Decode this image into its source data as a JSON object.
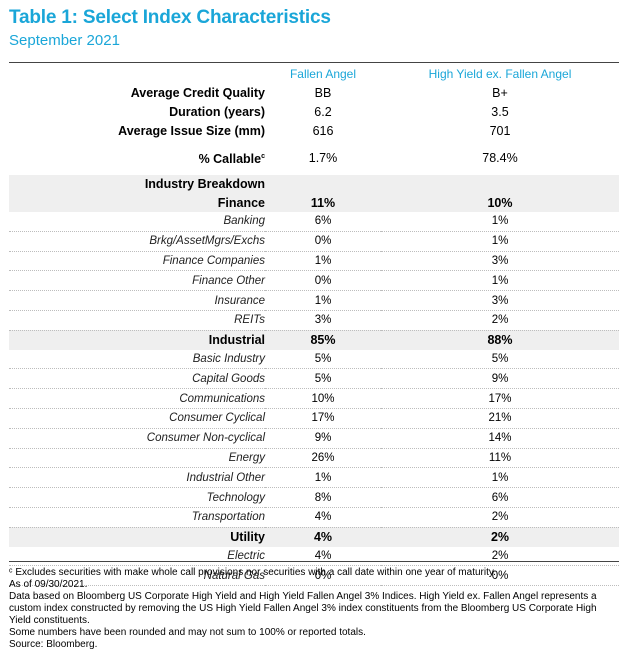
{
  "title": "Table 1: Select Index Characteristics",
  "subtitle": "September 2021",
  "columns": [
    "Fallen Angel",
    "High Yield ex. Fallen Angel"
  ],
  "summary": [
    {
      "label": "Average Credit Quality",
      "fa": "BB",
      "hy": "B+"
    },
    {
      "label": "Duration (years)",
      "fa": "6.2",
      "hy": "3.5"
    },
    {
      "label": "Average Issue Size (mm)",
      "fa": "616",
      "hy": "701"
    }
  ],
  "callable": {
    "label": "% Callable",
    "sup": "c",
    "fa": "1.7%",
    "hy": "78.4%"
  },
  "industry_header": "Industry Breakdown",
  "sections": [
    {
      "name": "Finance",
      "fa": "11%",
      "hy": "10%",
      "items": [
        {
          "label": "Banking",
          "fa": "6%",
          "hy": "1%"
        },
        {
          "label": "Brkg/AssetMgrs/Exchs",
          "fa": "0%",
          "hy": "1%"
        },
        {
          "label": "Finance Companies",
          "fa": "1%",
          "hy": "3%"
        },
        {
          "label": "Finance Other",
          "fa": "0%",
          "hy": "1%"
        },
        {
          "label": "Insurance",
          "fa": "1%",
          "hy": "3%"
        },
        {
          "label": "REITs",
          "fa": "3%",
          "hy": "2%"
        }
      ]
    },
    {
      "name": "Industrial",
      "fa": "85%",
      "hy": "88%",
      "items": [
        {
          "label": "Basic Industry",
          "fa": "5%",
          "hy": "5%"
        },
        {
          "label": "Capital Goods",
          "fa": "5%",
          "hy": "9%"
        },
        {
          "label": "Communications",
          "fa": "10%",
          "hy": "17%"
        },
        {
          "label": "Consumer Cyclical",
          "fa": "17%",
          "hy": "21%"
        },
        {
          "label": "Consumer Non-cyclical",
          "fa": "9%",
          "hy": "14%"
        },
        {
          "label": "Energy",
          "fa": "26%",
          "hy": "11%"
        },
        {
          "label": "Industrial Other",
          "fa": "1%",
          "hy": "1%"
        },
        {
          "label": "Technology",
          "fa": "8%",
          "hy": "6%"
        },
        {
          "label": "Transportation",
          "fa": "4%",
          "hy": "2%"
        }
      ]
    },
    {
      "name": "Utility",
      "fa": "4%",
      "hy": "2%",
      "items": [
        {
          "label": "Electric",
          "fa": "4%",
          "hy": "2%"
        },
        {
          "label": "Natural Gas",
          "fa": "0%",
          "hy": "0%"
        }
      ]
    }
  ],
  "notes": [
    "ᶜ Excludes securities with make whole call provisions nor securities with a call date within one year of maturity.",
    "As of 09/30/2021.",
    "Data based on Bloomberg US Corporate High Yield and High Yield Fallen Angel 3% Indices. High Yield ex. Fallen Angel represents a custom index constructed by removing the US High Yield Fallen Angel 3% index constituents from the Bloomberg US Corporate High Yield constituents.",
    "Some numbers have been rounded and may not sum to 100% or reported totals.",
    "Source: Bloomberg."
  ]
}
